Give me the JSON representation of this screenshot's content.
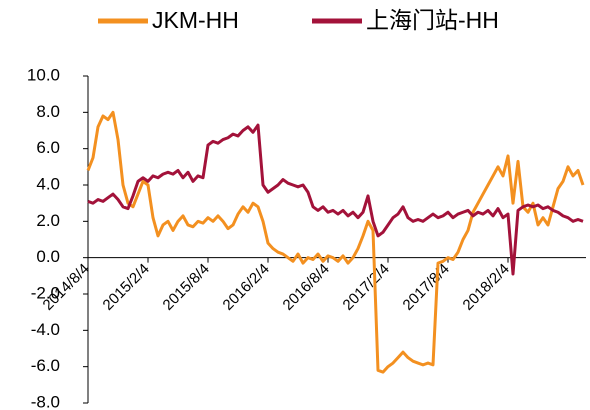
{
  "chart_data": {
    "type": "line",
    "categories": [
      "2014/8/4",
      null,
      null,
      null,
      null,
      null,
      null,
      null,
      null,
      null,
      null,
      null,
      "2015/2/4",
      null,
      null,
      null,
      null,
      null,
      null,
      null,
      null,
      null,
      null,
      null,
      "2015/8/4",
      null,
      null,
      null,
      null,
      null,
      null,
      null,
      null,
      null,
      null,
      null,
      "2016/2/4",
      null,
      null,
      null,
      null,
      null,
      null,
      null,
      null,
      null,
      null,
      null,
      "2016/8/4",
      null,
      null,
      null,
      null,
      null,
      null,
      null,
      null,
      null,
      null,
      null,
      "2017/2/4",
      null,
      null,
      null,
      null,
      null,
      null,
      null,
      null,
      null,
      null,
      null,
      "2017/8/4",
      null,
      null,
      null,
      null,
      null,
      null,
      null,
      null,
      null,
      null,
      null,
      "2018/2/4",
      null,
      null,
      null,
      null,
      null,
      null,
      null,
      null,
      null,
      null,
      null,
      null,
      null,
      null,
      null
    ],
    "series": [
      {
        "name": "JKM-HH",
        "color": "#f39020",
        "values": [
          4.8,
          5.5,
          7.2,
          7.8,
          7.6,
          8.0,
          6.5,
          4.0,
          3.0,
          2.8,
          3.5,
          4.2,
          4.0,
          2.2,
          1.2,
          1.8,
          2.0,
          1.5,
          2.0,
          2.3,
          1.8,
          1.7,
          2.0,
          1.9,
          2.2,
          2.0,
          2.3,
          2.0,
          1.6,
          1.8,
          2.4,
          2.8,
          2.5,
          3.0,
          2.8,
          2.0,
          0.8,
          0.5,
          0.3,
          0.2,
          0.0,
          -0.2,
          0.2,
          -0.3,
          0.0,
          -0.1,
          0.2,
          -0.2,
          0.1,
          0.0,
          -0.2,
          0.1,
          -0.3,
          0.0,
          0.5,
          1.2,
          2.0,
          1.5,
          -6.2,
          -6.3,
          -6.0,
          -5.8,
          -5.5,
          -5.2,
          -5.5,
          -5.7,
          -5.8,
          -5.9,
          -5.8,
          -5.9,
          -0.3,
          -0.2,
          0.0,
          -0.1,
          0.3,
          1.0,
          1.5,
          2.5,
          3.0,
          3.5,
          4.0,
          4.5,
          5.0,
          4.5,
          5.6,
          3.0,
          5.3,
          2.8,
          2.5,
          3.0,
          1.8,
          2.2,
          1.8,
          2.8,
          3.8,
          4.2,
          5.0,
          4.5,
          4.8,
          4.0
        ]
      },
      {
        "name": "上海门站-HH",
        "color": "#a3123a",
        "values": [
          3.1,
          3.0,
          3.2,
          3.1,
          3.3,
          3.5,
          3.2,
          2.8,
          2.7,
          3.4,
          4.2,
          4.4,
          4.2,
          4.5,
          4.4,
          4.6,
          4.7,
          4.6,
          4.8,
          4.4,
          4.7,
          4.2,
          4.5,
          4.4,
          6.2,
          6.4,
          6.3,
          6.5,
          6.6,
          6.8,
          6.7,
          7.0,
          7.2,
          6.9,
          7.3,
          4.0,
          3.6,
          3.8,
          4.0,
          4.3,
          4.1,
          4.0,
          3.9,
          4.0,
          3.6,
          2.8,
          2.6,
          2.8,
          2.5,
          2.6,
          2.4,
          2.6,
          2.3,
          2.5,
          2.2,
          2.5,
          3.4,
          2.0,
          1.2,
          1.4,
          1.8,
          2.2,
          2.4,
          2.8,
          2.2,
          2.0,
          2.1,
          2.0,
          2.2,
          2.4,
          2.2,
          2.3,
          2.5,
          2.2,
          2.4,
          2.5,
          2.6,
          2.3,
          2.5,
          2.4,
          2.6,
          2.3,
          2.7,
          2.2,
          2.4,
          -0.9,
          2.6,
          2.8,
          2.9,
          2.8,
          2.9,
          2.7,
          2.8,
          2.6,
          2.5,
          2.3,
          2.2,
          2.0,
          2.1,
          2.0
        ]
      }
    ],
    "ylim": [
      -8,
      10
    ],
    "yticks": [
      {
        "value": -8,
        "label": "-8.0"
      },
      {
        "value": -6,
        "label": "-6.0"
      },
      {
        "value": -4,
        "label": "-4.0"
      },
      {
        "value": -2,
        "label": "-2.0"
      },
      {
        "value": 0,
        "label": "0.0"
      },
      {
        "value": 2,
        "label": "2.0"
      },
      {
        "value": 4,
        "label": "4.0"
      },
      {
        "value": 6,
        "label": "6.0"
      },
      {
        "value": 8,
        "label": "8.0"
      },
      {
        "value": 10,
        "label": "10.0"
      }
    ],
    "legend": "top"
  }
}
